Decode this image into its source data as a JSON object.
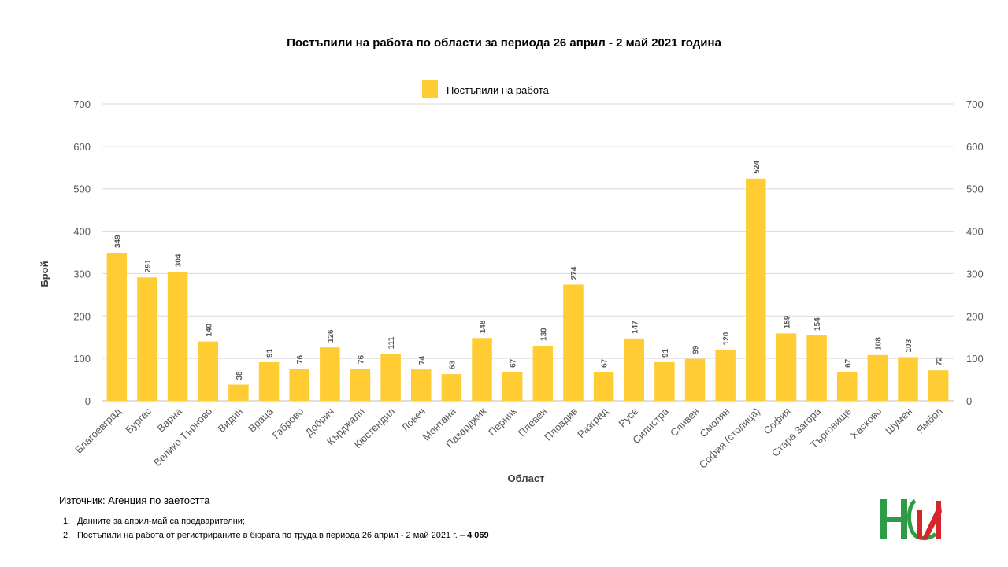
{
  "chart_data": {
    "type": "bar",
    "title": "Постъпили на работа по области за периода 26 април - 2 май 2021 година",
    "xlabel": "Област",
    "ylabel": "Брой",
    "ylim": [
      0,
      700
    ],
    "yticks": [
      0,
      100,
      200,
      300,
      400,
      500,
      600,
      700
    ],
    "grid": true,
    "legend_position": "top-center",
    "categories": [
      "Благоевград",
      "Бургас",
      "Варна",
      "Велико Търново",
      "Видин",
      "Враца",
      "Габрово",
      "Добрич",
      "Кърджали",
      "Кюстендил",
      "Ловеч",
      "Монтана",
      "Пазарджик",
      "Перник",
      "Плевен",
      "Пловдив",
      "Разград",
      "Русе",
      "Силистра",
      "Сливен",
      "Смолян",
      "София (столица)",
      "София",
      "Стара Загора",
      "Търговище",
      "Хасково",
      "Шумен",
      "Ямбол"
    ],
    "series": [
      {
        "name": "Постъпили на работа",
        "color": "#FFCC33",
        "values": [
          349,
          291,
          304,
          140,
          38,
          91,
          76,
          126,
          76,
          111,
          74,
          63,
          148,
          67,
          130,
          274,
          67,
          147,
          91,
          99,
          120,
          524,
          159,
          154,
          67,
          108,
          103,
          72
        ]
      }
    ]
  },
  "source": "Източник: Агенция по заетостта",
  "notes": [
    {
      "num": "1.",
      "text": "Данните за април-май са предварителни;",
      "bold": ""
    },
    {
      "num": "2.",
      "text": "Постъпили на работа от регистрираните в бюрата по труда в периода 26 април - 2 май 2021 г. – ",
      "bold": "4 069"
    }
  ],
  "colors": {
    "bar": "#FFCC33",
    "grid": "#d9d9d9",
    "axis_text": "#595959",
    "label_text": "#595959",
    "logo_green": "#2e9b47",
    "logo_red": "#d7262b"
  }
}
